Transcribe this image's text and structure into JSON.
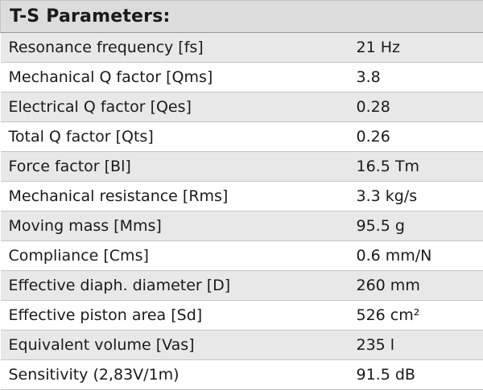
{
  "header": {
    "title": "T-S Parameters:"
  },
  "colors": {
    "header_bg": "#dcdcdc",
    "row_shaded": "#e8e8e8",
    "row_plain": "#ffffff",
    "text": "#1a1a1a"
  },
  "rows": [
    {
      "name": "Resonance frequency [fs]",
      "value": "21 Hz"
    },
    {
      "name": "Mechanical Q factor [Qms]",
      "value": "3.8"
    },
    {
      "name": "Electrical Q factor [Qes]",
      "value": "0.28"
    },
    {
      "name": "Total Q factor [Qts]",
      "value": "0.26"
    },
    {
      "name": "Force factor [Bl]",
      "value": "16.5 Tm"
    },
    {
      "name": "Mechanical resistance [Rms]",
      "value": "3.3 kg/s"
    },
    {
      "name": "Moving mass [Mms]",
      "value": "95.5 g"
    },
    {
      "name": "Compliance [Cms]",
      "value": "0.6 mm/N"
    },
    {
      "name": "Effective diaph. diameter [D]",
      "value": "260 mm"
    },
    {
      "name": "Effective piston area [Sd]",
      "value": "526 cm²"
    },
    {
      "name": "Equivalent volume [Vas]",
      "value": "235 l"
    },
    {
      "name": "Sensitivity (2,83V/1m)",
      "value": "91.5 dB"
    }
  ]
}
